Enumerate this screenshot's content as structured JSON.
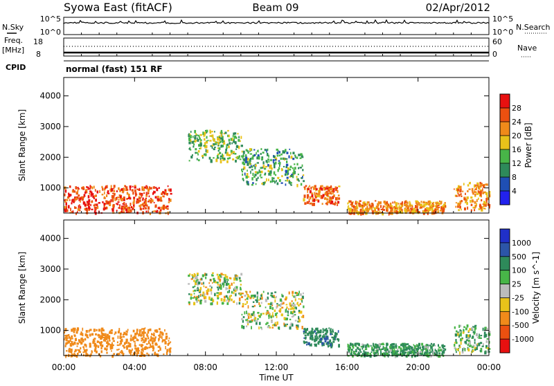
{
  "header": {
    "station": "Syowa East (fitACF)",
    "beam": "Beam 09",
    "date": "02/Apr/2012"
  },
  "noise_panel": {
    "left_label": "N.Sky",
    "right_label": "N.Search",
    "left_ticks": [
      "10^5",
      "10^0"
    ],
    "right_ticks": [
      "10^5",
      "10^0"
    ]
  },
  "freq_panel": {
    "left_label_1": "Freq.",
    "left_label_2": "[MHz]",
    "right_label": "Nave",
    "left_ticks": [
      "18",
      "8"
    ],
    "right_ticks": [
      "60",
      "0"
    ],
    "cpid_label": "CPID",
    "mode_text": "normal (fast) 151 RF"
  },
  "x_axis": {
    "label": "Time UT",
    "ticks": [
      "00:00",
      "04:00",
      "08:00",
      "12:00",
      "16:00",
      "20:00",
      "00:00"
    ]
  },
  "power_panel": {
    "ylabel": "Slant Range [km]",
    "yticks": [
      "1000",
      "2000",
      "3000",
      "4000"
    ],
    "colorbar_label": "Power [dB]",
    "colorbar_ticks": [
      "4",
      "8",
      "12",
      "16",
      "20",
      "24",
      "28"
    ],
    "colors": [
      "#2222ee",
      "#1f4fb4",
      "#2e8a5a",
      "#48b548",
      "#e8c21a",
      "#f08a1a",
      "#ec5010",
      "#e81010"
    ]
  },
  "velocity_panel": {
    "ylabel": "Slant Range [km]",
    "yticks": [
      "1000",
      "2000",
      "3000",
      "4000"
    ],
    "colorbar_label": "Velocity [m s^-1]",
    "colorbar_ticks": [
      "1000",
      "500",
      "100",
      "25",
      "-25",
      "-100",
      "-500",
      "-1000"
    ],
    "colors": [
      "#2030c8",
      "#2c55a8",
      "#2e8a5a",
      "#48b548",
      "#bcbcbc",
      "#e8c21a",
      "#f08a1a",
      "#ec5010",
      "#e81010"
    ]
  },
  "chart_data": [
    {
      "type": "heatmap",
      "title": "Beam 09",
      "xlabel": "Time UT",
      "ylabel": "Slant Range [km]",
      "colorbar": "Power [dB]",
      "xlim": [
        0,
        24
      ],
      "ylim": [
        180,
        4600
      ],
      "clim": [
        0,
        32
      ],
      "echo_regions": [
        {
          "t_start": 0.0,
          "t_end": 6.0,
          "range_start": 200,
          "range_end": 1100,
          "power_db": 26
        },
        {
          "t_start": 7.0,
          "t_end": 10.0,
          "range_start": 1900,
          "range_end": 2900,
          "power_db": 14
        },
        {
          "t_start": 10.0,
          "t_end": 13.5,
          "range_start": 1100,
          "range_end": 2300,
          "power_db": 12
        },
        {
          "t_start": 13.5,
          "t_end": 15.5,
          "range_start": 500,
          "range_end": 1100,
          "power_db": 24
        },
        {
          "t_start": 16.0,
          "t_end": 21.5,
          "range_start": 200,
          "range_end": 600,
          "power_db": 22
        },
        {
          "t_start": 22.0,
          "t_end": 24.0,
          "range_start": 300,
          "range_end": 1200,
          "power_db": 22
        }
      ]
    },
    {
      "type": "heatmap",
      "xlabel": "Time UT",
      "ylabel": "Slant Range [km]",
      "colorbar": "Velocity [m s^-1]",
      "xlim": [
        0,
        24
      ],
      "ylim": [
        180,
        4600
      ],
      "echo_regions": [
        {
          "t_start": 0.0,
          "t_end": 6.0,
          "range_start": 200,
          "range_end": 1100,
          "velocity": -300
        },
        {
          "t_start": 7.0,
          "t_end": 10.0,
          "range_start": 1900,
          "range_end": 2900,
          "velocity": 0
        },
        {
          "t_start": 10.0,
          "t_end": 13.5,
          "range_start": 1100,
          "range_end": 2300,
          "velocity": 0
        },
        {
          "t_start": 13.5,
          "t_end": 15.5,
          "range_start": 500,
          "range_end": 1100,
          "velocity": 400
        },
        {
          "t_start": 16.0,
          "t_end": 21.5,
          "range_start": 200,
          "range_end": 600,
          "velocity": 150
        },
        {
          "t_start": 22.0,
          "t_end": 24.0,
          "range_start": 300,
          "range_end": 1200,
          "velocity": 80
        }
      ]
    }
  ]
}
